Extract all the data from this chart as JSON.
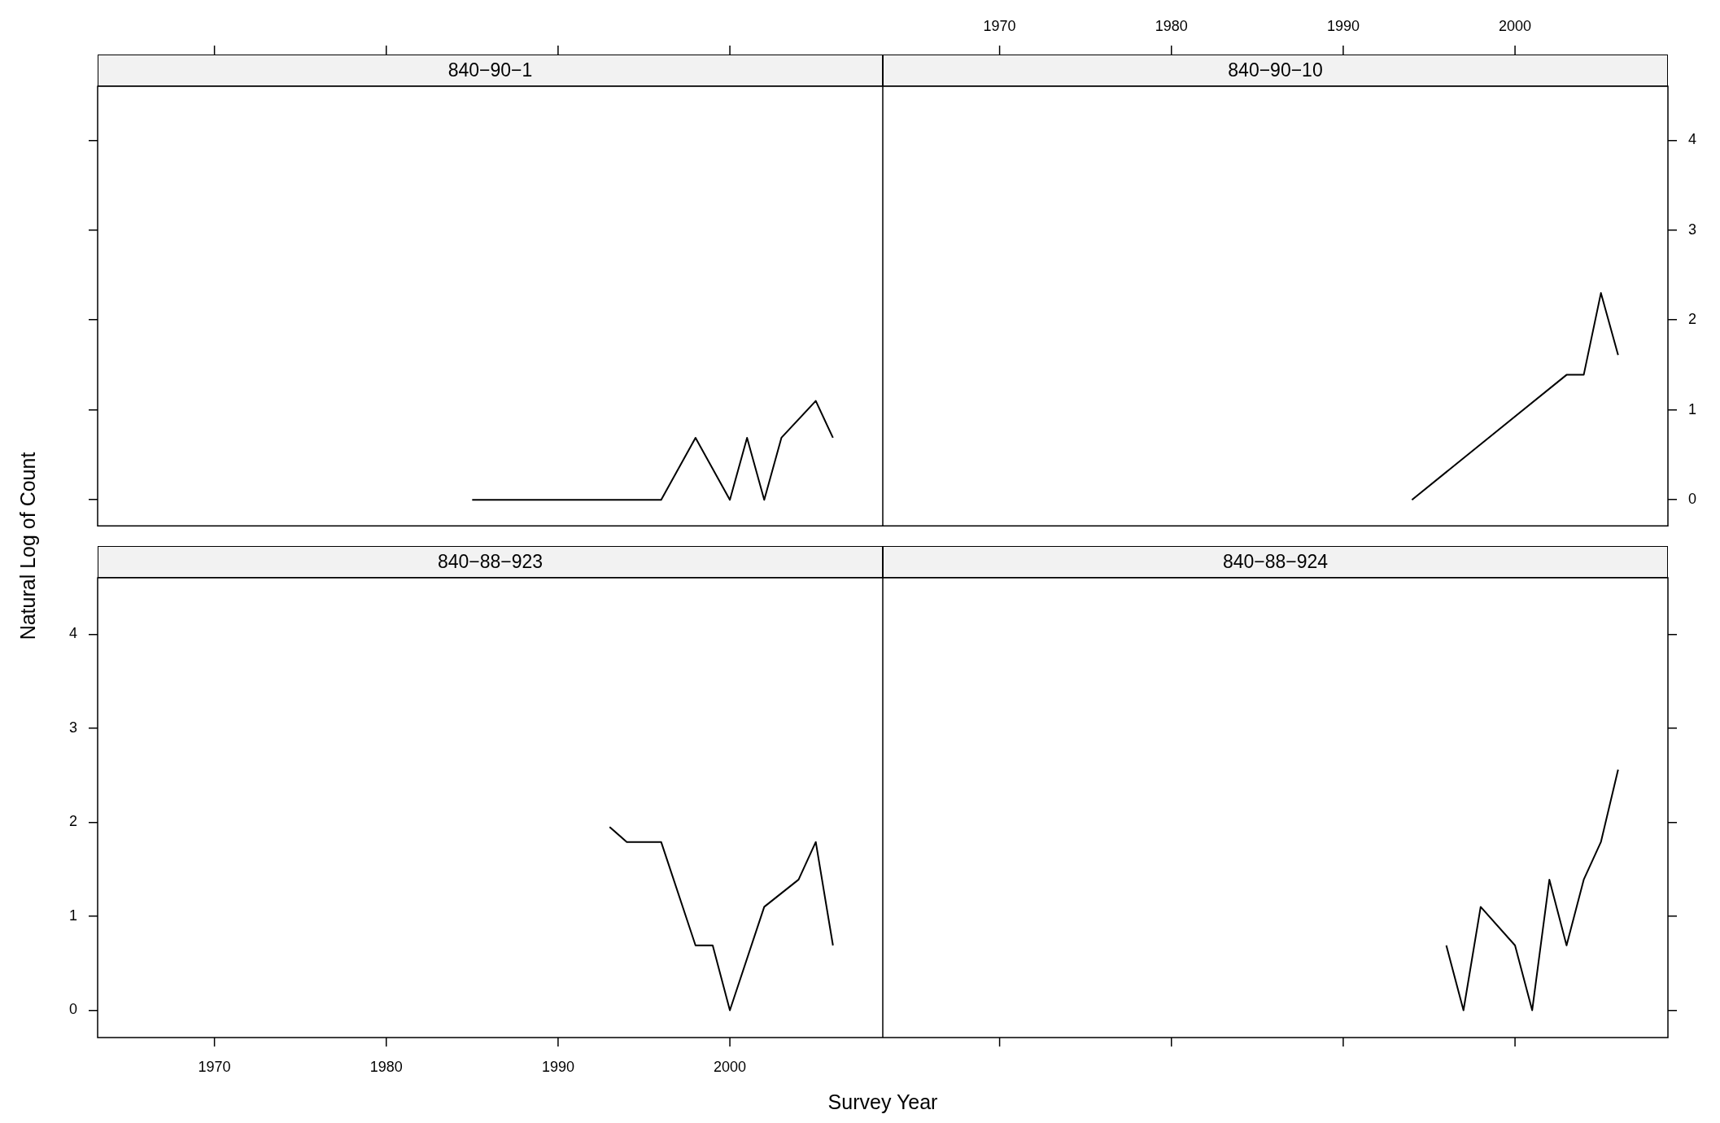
{
  "chart_data": [
    {
      "type": "line",
      "title": "840−90−1",
      "x": [
        1985,
        1996,
        1998,
        2000,
        2001,
        2002,
        2003,
        2005,
        2006
      ],
      "values": [
        0,
        0,
        0.69,
        0,
        0.69,
        0,
        0.69,
        1.1,
        0.69
      ],
      "color": "#000000",
      "xlim": [
        1963.2,
        2008.9
      ],
      "ylim": [
        -0.29,
        4.6
      ],
      "xticks": [
        1970,
        1980,
        1990,
        2000
      ],
      "yticks": [
        0,
        1,
        2,
        3,
        4
      ],
      "tick_labels": false
    },
    {
      "type": "line",
      "title": "840−90−10",
      "x": [
        1994,
        2003,
        2004,
        2005,
        2006
      ],
      "values": [
        0,
        1.39,
        1.39,
        2.3,
        1.61
      ],
      "color": "#000000",
      "xlim": [
        1963.2,
        2008.9
      ],
      "ylim": [
        -0.29,
        4.6
      ],
      "xticks": [
        1970,
        1980,
        1990,
        2000
      ],
      "yticks": [
        0,
        1,
        2,
        3,
        4
      ]
    },
    {
      "type": "line",
      "title": "840−88−923",
      "xlabel": "Survey Year",
      "ylabel": "Natural Log of Count",
      "x": [
        1993,
        1994,
        1996,
        1998,
        1999,
        2000,
        2002,
        2004,
        2005,
        2006
      ],
      "values": [
        1.95,
        1.79,
        1.79,
        0.69,
        0.69,
        0,
        1.1,
        1.39,
        1.79,
        0.69
      ],
      "color": "#000000",
      "xlim": [
        1963.2,
        2008.9
      ],
      "ylim": [
        -0.29,
        4.6
      ],
      "xticks": [
        1970,
        1980,
        1990,
        2000
      ],
      "yticks": [
        0,
        1,
        2,
        3,
        4
      ]
    },
    {
      "type": "line",
      "title": "840−88−924",
      "x": [
        1996,
        1997,
        1998,
        2000,
        2001,
        2002,
        2003,
        2004,
        2005,
        2006
      ],
      "values": [
        0.69,
        0,
        1.1,
        0.69,
        0,
        1.39,
        0.69,
        1.39,
        1.79,
        2.56
      ],
      "color": "#000000",
      "xlim": [
        1963.2,
        2008.9
      ],
      "ylim": [
        -0.29,
        4.6
      ],
      "xticks": [
        1970,
        1980,
        1990,
        2000
      ],
      "yticks": [
        0,
        1,
        2,
        3,
        4
      ],
      "tick_labels": false
    }
  ]
}
